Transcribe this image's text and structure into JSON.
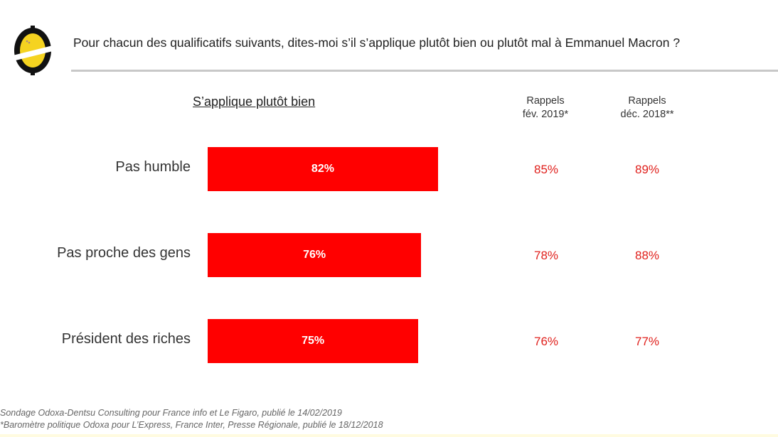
{
  "header": {
    "title": "Pour chacun des qualificatifs suivants, dites-moi s’il s’applique plutôt bien ou plutôt mal à Emmanuel Macron ?"
  },
  "chart_data": {
    "type": "bar",
    "title": "S’applique plutôt bien",
    "categories": [
      "Pas humble",
      "Pas proche des gens",
      "Président des riches"
    ],
    "series": [
      {
        "name": "S’applique plutôt bien",
        "values": [
          82,
          76,
          75
        ],
        "labels": [
          "82%",
          "76%",
          "75%"
        ]
      },
      {
        "name": "Rappels fév. 2019*",
        "values": [
          85,
          78,
          76
        ],
        "labels": [
          "85%",
          "78%",
          "76%"
        ]
      },
      {
        "name": "Rappels déc. 2018**",
        "values": [
          89,
          88,
          77
        ],
        "labels": [
          "89%",
          "88%",
          "77%"
        ]
      }
    ],
    "column_headers": [
      [
        "Rappels",
        "fév. 2019*"
      ],
      [
        "Rappels",
        "déc. 2018**"
      ]
    ],
    "ylim": [
      0,
      100
    ],
    "bar_color": "#ff0000",
    "recall_color": "#e0201c"
  },
  "footnotes": [
    "Sondage Odoxa-Dentsu Consulting pour France info et Le Figaro, publié le 14/02/2019",
    "*Baromètre politique Odoxa pour L’Express, France Inter, Presse Régionale, publié le 18/12/2018"
  ]
}
